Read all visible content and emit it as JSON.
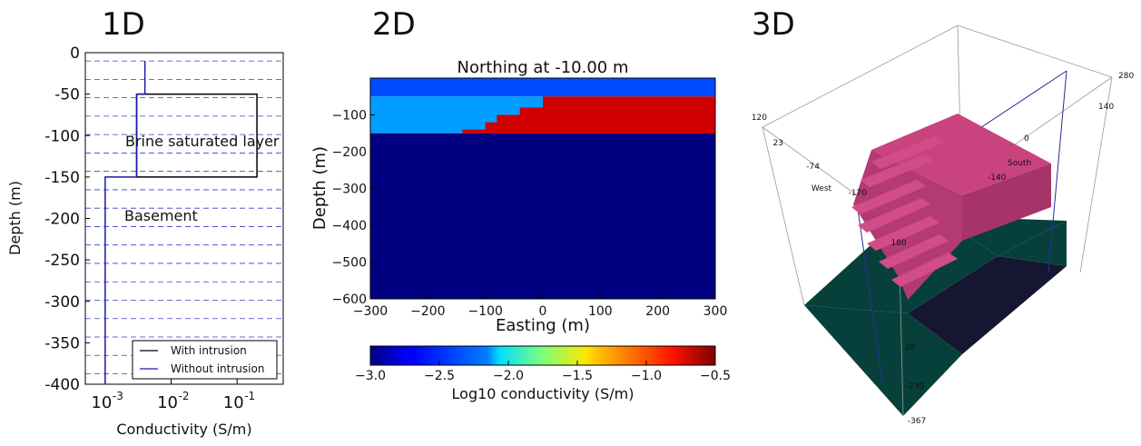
{
  "panels": {
    "p1": "1D",
    "p2": "2D",
    "p3": "3D"
  },
  "chart_data": [
    {
      "type": "line",
      "panel": "1D",
      "xlabel": "Conductivity (S/m)",
      "ylabel": "Depth (m)",
      "xscale": "log",
      "xlim": [
        0.0005,
        0.5
      ],
      "ylim": [
        -400,
        0
      ],
      "xticks": [
        "10^-3",
        "10^-2",
        "10^-1"
      ],
      "yticks": [
        0,
        -50,
        -100,
        -150,
        -200,
        -250,
        -300,
        -350,
        -400
      ],
      "grid": "horizontal dashed",
      "series": [
        {
          "name": "With intrusion",
          "color": "#000000",
          "x": [
            0.003,
            0.003,
            0.2,
            0.2,
            0.003
          ],
          "y": [
            -50,
            -150,
            -150,
            -50,
            -50
          ]
        },
        {
          "name": "Without intrusion",
          "color": "#1a1aa8",
          "x": [
            0.004,
            0.004,
            0.003,
            0.003,
            0.001,
            0.001
          ],
          "y": [
            -10,
            -50,
            -50,
            -150,
            -150,
            -400
          ]
        }
      ],
      "annotations": [
        "Brine saturated layer",
        "Basement"
      ],
      "legend": "bottom-right"
    },
    {
      "type": "heatmap",
      "panel": "2D",
      "title": "Northing at -10.00 m",
      "xlabel": "Easting (m)",
      "ylabel": "Depth (m)",
      "xlim": [
        -300,
        300
      ],
      "ylim": [
        -600,
        0
      ],
      "xticks": [
        -300,
        -200,
        -100,
        0,
        100,
        200,
        300
      ],
      "yticks": [
        -100,
        -200,
        -300,
        -400,
        -500,
        -600
      ],
      "layers": [
        {
          "top": 0,
          "bottom": -50,
          "log10_sigma": -2.5
        },
        {
          "top": -50,
          "bottom": -150,
          "log10_sigma": -2.3
        },
        {
          "top": -150,
          "bottom": -600,
          "log10_sigma": -3.0
        }
      ],
      "intrusion_log10_sigma": -0.7,
      "intrusion_steps": [
        {
          "x_left": 0,
          "y_top": -50
        },
        {
          "x_left": -40,
          "y_top": -80
        },
        {
          "x_left": -80,
          "y_top": -100
        },
        {
          "x_left": -100,
          "y_top": -120
        },
        {
          "x_left": -140,
          "y_top": -140
        }
      ],
      "colorbar": {
        "label": "Log10 conductivity (S/m)",
        "range": [
          -3.0,
          -0.5
        ],
        "ticks": [
          "−3.0",
          "−2.5",
          "−2.0",
          "−1.5",
          "−1.0",
          "−0.5"
        ]
      }
    },
    {
      "type": "3d-block",
      "panel": "3D",
      "labels": [
        "280",
        "140",
        "120",
        "23",
        "-74",
        "West",
        "-170",
        "0",
        "South",
        "-140",
        "180",
        "38",
        "-230",
        "-367"
      ],
      "colors": {
        "body": "#b03a72",
        "ground_light": "#07403a",
        "ground_dark": "#161532",
        "axes": "#2a2aa0"
      }
    }
  ]
}
